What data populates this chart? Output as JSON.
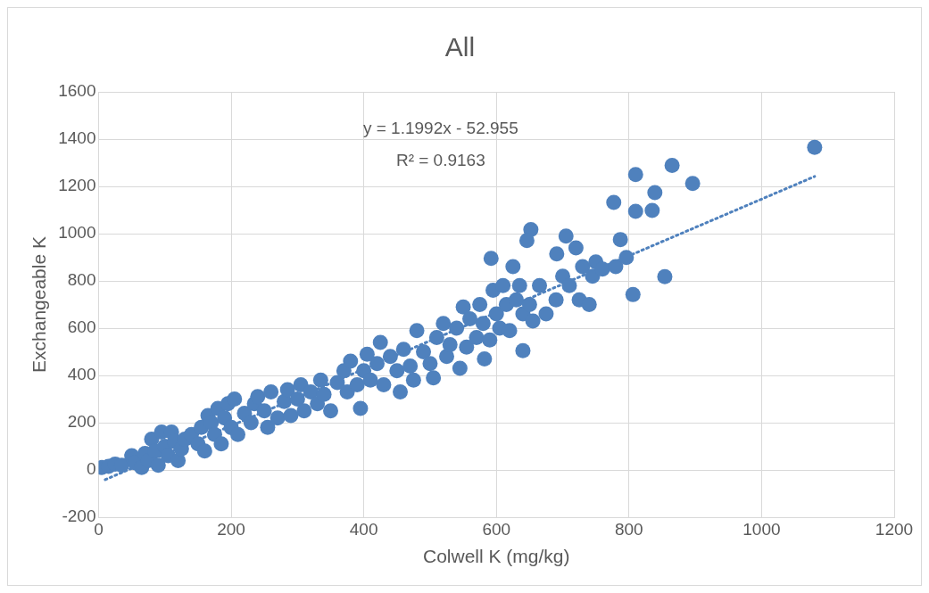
{
  "chart_data": {
    "type": "scatter",
    "title": "All",
    "xlabel": "Colwell K (mg/kg)",
    "ylabel": "Exchangeable K",
    "xlim": [
      0,
      1200
    ],
    "xticks": [
      0,
      200,
      400,
      600,
      800,
      1000,
      1200
    ],
    "ylim": [
      -200,
      1600
    ],
    "yticks": [
      -200,
      0,
      200,
      400,
      600,
      800,
      1000,
      1200,
      1400,
      1600
    ],
    "grid": true,
    "legend": false,
    "marker": "circle",
    "annotations": [
      "y = 1.1992x - 52.955",
      "R² = 0.9163"
    ],
    "series": [
      {
        "color": "#4f81bd",
        "x": [
          5,
          15,
          25,
          35,
          50,
          55,
          65,
          70,
          75,
          80,
          85,
          90,
          95,
          100,
          105,
          110,
          115,
          120,
          125,
          130,
          140,
          150,
          155,
          160,
          165,
          170,
          175,
          180,
          185,
          190,
          195,
          200,
          205,
          210,
          220,
          230,
          235,
          240,
          250,
          255,
          260,
          270,
          280,
          285,
          290,
          300,
          305,
          310,
          320,
          330,
          335,
          340,
          350,
          360,
          370,
          375,
          380,
          390,
          395,
          400,
          405,
          410,
          420,
          425,
          430,
          440,
          450,
          455,
          460,
          470,
          475,
          480,
          490,
          500,
          505,
          510,
          520,
          525,
          530,
          540,
          545,
          550,
          555,
          560,
          570,
          575,
          580,
          590,
          595,
          600,
          605,
          610,
          615,
          620,
          625,
          630,
          635,
          640,
          650,
          655,
          665,
          675,
          690,
          700,
          710,
          720,
          725,
          730,
          740,
          745,
          750,
          760,
          780,
          865,
          810,
          896,
          839,
          777,
          810,
          835,
          787,
          796,
          854,
          806,
          652,
          646,
          705,
          592,
          691,
          640,
          582,
          1080
        ],
        "values": [
          10,
          15,
          25,
          20,
          60,
          30,
          10,
          70,
          40,
          130,
          80,
          20,
          160,
          100,
          60,
          160,
          120,
          40,
          90,
          130,
          150,
          110,
          180,
          80,
          230,
          200,
          150,
          260,
          110,
          220,
          280,
          180,
          300,
          150,
          240,
          200,
          280,
          310,
          250,
          180,
          330,
          220,
          290,
          340,
          230,
          300,
          360,
          250,
          330,
          280,
          380,
          320,
          250,
          370,
          420,
          330,
          460,
          360,
          260,
          420,
          490,
          380,
          450,
          540,
          360,
          480,
          420,
          330,
          510,
          440,
          380,
          590,
          500,
          450,
          390,
          560,
          620,
          480,
          530,
          600,
          430,
          690,
          520,
          640,
          560,
          700,
          620,
          550,
          760,
          660,
          600,
          780,
          700,
          590,
          860,
          720,
          780,
          660,
          700,
          630,
          780,
          660,
          720,
          820,
          780,
          940,
          720,
          860,
          700,
          820,
          880,
          850,
          860,
          1289,
          1250,
          1212,
          1174,
          1132,
          1094,
          1098,
          975,
          899,
          818,
          742,
          1017,
          971,
          990,
          895,
          914,
          505,
          470,
          1365
        ]
      },
      {
        "type": "line",
        "color": "#4f81bd",
        "line_style": "dotted",
        "marker": "none",
        "x": [
          10,
          1080
        ],
        "values": [
          -41,
          1242
        ]
      }
    ]
  }
}
